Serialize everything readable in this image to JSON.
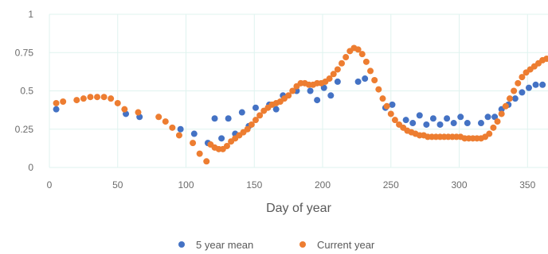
{
  "chart_data": {
    "type": "scatter",
    "xlabel": "Day of year",
    "ylabel": "",
    "xlim": [
      0,
      365
    ],
    "ylim": [
      0,
      1
    ],
    "xticks": [
      "0",
      "50",
      "100",
      "150",
      "200",
      "250",
      "300",
      "350"
    ],
    "yticks": [
      "0",
      "0.25",
      "0.5",
      "0.75",
      "1"
    ],
    "grid": true,
    "legend_position": "bottom",
    "series": [
      {
        "name": "5 year mean",
        "color": "#4472c4",
        "points": [
          [
            5,
            0.38
          ],
          [
            56,
            0.35
          ],
          [
            66,
            0.33
          ],
          [
            96,
            0.25
          ],
          [
            106,
            0.22
          ],
          [
            116,
            0.16
          ],
          [
            121,
            0.32
          ],
          [
            126,
            0.19
          ],
          [
            131,
            0.32
          ],
          [
            136,
            0.22
          ],
          [
            141,
            0.36
          ],
          [
            146,
            0.27
          ],
          [
            151,
            0.39
          ],
          [
            161,
            0.41
          ],
          [
            166,
            0.38
          ],
          [
            171,
            0.47
          ],
          [
            181,
            0.5
          ],
          [
            191,
            0.5
          ],
          [
            196,
            0.44
          ],
          [
            201,
            0.52
          ],
          [
            206,
            0.47
          ],
          [
            211,
            0.56
          ],
          [
            226,
            0.56
          ],
          [
            231,
            0.58
          ],
          [
            246,
            0.39
          ],
          [
            251,
            0.41
          ],
          [
            261,
            0.31
          ],
          [
            266,
            0.29
          ],
          [
            271,
            0.34
          ],
          [
            276,
            0.28
          ],
          [
            281,
            0.32
          ],
          [
            286,
            0.28
          ],
          [
            291,
            0.32
          ],
          [
            296,
            0.29
          ],
          [
            301,
            0.33
          ],
          [
            306,
            0.29
          ],
          [
            316,
            0.29
          ],
          [
            321,
            0.33
          ],
          [
            326,
            0.33
          ],
          [
            331,
            0.38
          ],
          [
            336,
            0.41
          ],
          [
            341,
            0.45
          ],
          [
            346,
            0.49
          ],
          [
            351,
            0.52
          ],
          [
            356,
            0.54
          ],
          [
            361,
            0.54
          ]
        ]
      },
      {
        "name": "Current year",
        "color": "#ed7d31",
        "points": [
          [
            5,
            0.42
          ],
          [
            10,
            0.43
          ],
          [
            20,
            0.44
          ],
          [
            25,
            0.45
          ],
          [
            30,
            0.46
          ],
          [
            35,
            0.46
          ],
          [
            40,
            0.46
          ],
          [
            45,
            0.45
          ],
          [
            50,
            0.42
          ],
          [
            55,
            0.38
          ],
          [
            65,
            0.36
          ],
          [
            80,
            0.33
          ],
          [
            85,
            0.3
          ],
          [
            90,
            0.26
          ],
          [
            95,
            0.21
          ],
          [
            105,
            0.16
          ],
          [
            110,
            0.09
          ],
          [
            115,
            0.04
          ],
          [
            118,
            0.15
          ],
          [
            121,
            0.13
          ],
          [
            124,
            0.12
          ],
          [
            127,
            0.12
          ],
          [
            130,
            0.14
          ],
          [
            133,
            0.17
          ],
          [
            136,
            0.19
          ],
          [
            139,
            0.21
          ],
          [
            142,
            0.23
          ],
          [
            145,
            0.25
          ],
          [
            148,
            0.28
          ],
          [
            151,
            0.31
          ],
          [
            154,
            0.34
          ],
          [
            157,
            0.37
          ],
          [
            160,
            0.39
          ],
          [
            163,
            0.41
          ],
          [
            166,
            0.42
          ],
          [
            169,
            0.43
          ],
          [
            172,
            0.45
          ],
          [
            175,
            0.47
          ],
          [
            178,
            0.5
          ],
          [
            181,
            0.53
          ],
          [
            184,
            0.55
          ],
          [
            187,
            0.55
          ],
          [
            190,
            0.54
          ],
          [
            193,
            0.54
          ],
          [
            196,
            0.55
          ],
          [
            199,
            0.55
          ],
          [
            202,
            0.56
          ],
          [
            205,
            0.58
          ],
          [
            208,
            0.61
          ],
          [
            211,
            0.64
          ],
          [
            214,
            0.68
          ],
          [
            217,
            0.72
          ],
          [
            220,
            0.76
          ],
          [
            223,
            0.78
          ],
          [
            226,
            0.77
          ],
          [
            229,
            0.74
          ],
          [
            232,
            0.69
          ],
          [
            235,
            0.63
          ],
          [
            238,
            0.57
          ],
          [
            241,
            0.51
          ],
          [
            244,
            0.45
          ],
          [
            247,
            0.4
          ],
          [
            250,
            0.35
          ],
          [
            253,
            0.31
          ],
          [
            256,
            0.28
          ],
          [
            259,
            0.26
          ],
          [
            262,
            0.24
          ],
          [
            265,
            0.23
          ],
          [
            268,
            0.22
          ],
          [
            271,
            0.21
          ],
          [
            274,
            0.21
          ],
          [
            277,
            0.2
          ],
          [
            280,
            0.2
          ],
          [
            283,
            0.2
          ],
          [
            286,
            0.2
          ],
          [
            289,
            0.2
          ],
          [
            292,
            0.2
          ],
          [
            295,
            0.2
          ],
          [
            298,
            0.2
          ],
          [
            301,
            0.2
          ],
          [
            304,
            0.19
          ],
          [
            307,
            0.19
          ],
          [
            310,
            0.19
          ],
          [
            313,
            0.19
          ],
          [
            316,
            0.19
          ],
          [
            319,
            0.2
          ],
          [
            322,
            0.22
          ],
          [
            325,
            0.26
          ],
          [
            328,
            0.3
          ],
          [
            331,
            0.35
          ],
          [
            334,
            0.4
          ],
          [
            337,
            0.45
          ],
          [
            340,
            0.5
          ],
          [
            343,
            0.55
          ],
          [
            346,
            0.59
          ],
          [
            349,
            0.62
          ],
          [
            352,
            0.64
          ],
          [
            355,
            0.66
          ],
          [
            358,
            0.68
          ],
          [
            361,
            0.7
          ],
          [
            364,
            0.71
          ]
        ]
      }
    ]
  }
}
